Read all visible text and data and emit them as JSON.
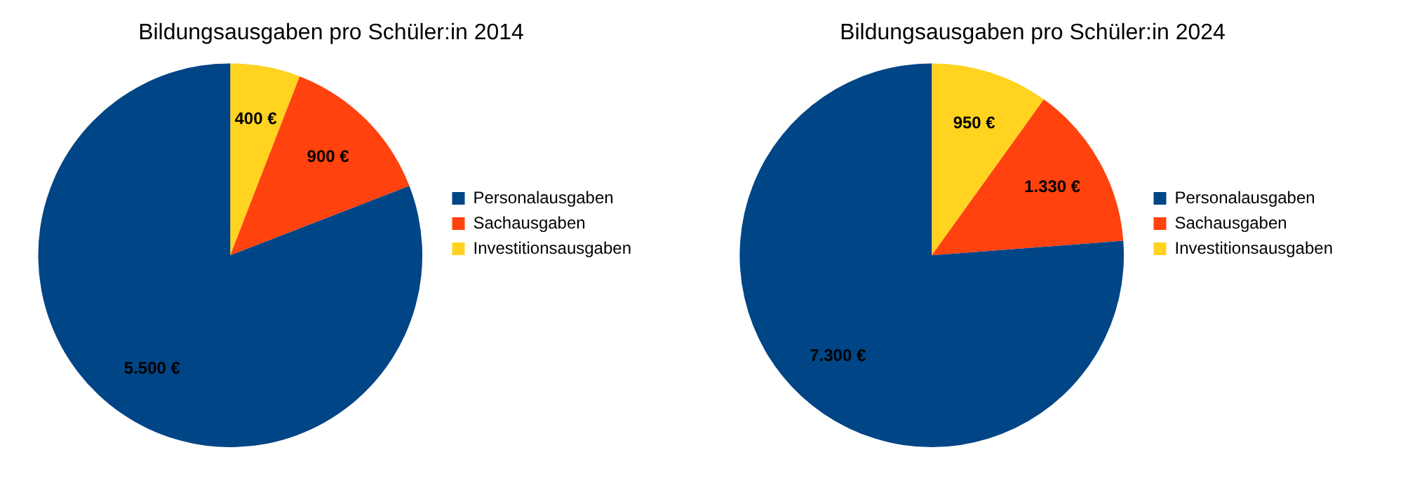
{
  "chart_data": [
    {
      "type": "pie",
      "title": "Bildungsausgaben pro Schüler:in 2014",
      "categories": [
        "Personalausgaben",
        "Sachausgaben",
        "Investitionsausgaben"
      ],
      "values": [
        5500,
        900,
        400
      ],
      "colors": [
        "#004586",
        "#ff420e",
        "#ffd320"
      ],
      "value_labels": [
        "5.500 €",
        "900 €",
        "400 €"
      ],
      "legend": "right"
    },
    {
      "type": "pie",
      "title": "Bildungsausgaben pro Schüler:in 2024",
      "categories": [
        "Personalausgaben",
        "Sachausgaben",
        "Investitionsausgaben"
      ],
      "values": [
        7300,
        1330,
        950
      ],
      "colors": [
        "#004586",
        "#ff420e",
        "#ffd320"
      ],
      "value_labels": [
        "7.300 €",
        "1.330 €",
        "950 €"
      ],
      "legend": "right"
    }
  ]
}
